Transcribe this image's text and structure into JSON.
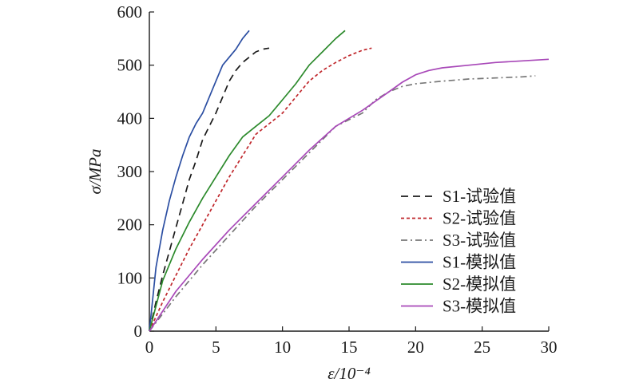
{
  "chart_data": {
    "type": "line",
    "xlabel": "ε/10⁻⁴",
    "ylabel": "σ/MPa",
    "xlim": [
      0,
      30
    ],
    "ylim": [
      0,
      600
    ],
    "xticks": [
      0,
      5,
      10,
      15,
      20,
      25,
      30
    ],
    "yticks": [
      0,
      100,
      200,
      300,
      400,
      500,
      600
    ],
    "grid": false,
    "legend_position": "bottom-right",
    "series": [
      {
        "name": "S1-试验值",
        "color": "#1a1a1a",
        "dash": "dashed",
        "x": [
          0,
          0.5,
          1.0,
          1.5,
          2.0,
          2.5,
          3.0,
          3.5,
          4.0,
          4.5,
          5.0,
          5.5,
          6.0,
          6.5,
          7.0,
          7.5,
          8.0,
          8.5,
          9.0
        ],
        "y": [
          0,
          55,
          105,
          150,
          195,
          240,
          285,
          320,
          360,
          385,
          410,
          440,
          470,
          490,
          505,
          515,
          525,
          530,
          532
        ]
      },
      {
        "name": "S2-试验值",
        "color": "#c0282d",
        "dash": "dotted",
        "x": [
          0,
          1,
          2,
          3,
          4,
          5,
          6,
          7,
          8,
          9,
          10,
          11,
          12,
          13,
          14,
          15,
          16,
          16.7
        ],
        "y": [
          0,
          55,
          105,
          155,
          200,
          245,
          290,
          330,
          370,
          390,
          410,
          440,
          470,
          490,
          505,
          518,
          528,
          532
        ]
      },
      {
        "name": "S3-试验值",
        "color": "#777777",
        "dash": "dashdot",
        "x": [
          0,
          2,
          4,
          6,
          8,
          10,
          12,
          14,
          16,
          17,
          18,
          19,
          20,
          22,
          24,
          26,
          28,
          29
        ],
        "y": [
          0,
          65,
          125,
          180,
          235,
          285,
          335,
          385,
          410,
          435,
          450,
          460,
          465,
          470,
          474,
          476,
          478,
          480
        ]
      },
      {
        "name": "S1-模拟值",
        "color": "#2b4ea2",
        "dash": "solid",
        "x": [
          0,
          0.5,
          1.0,
          1.5,
          2.0,
          2.5,
          3.0,
          3.5,
          4.0,
          4.5,
          5.0,
          5.5,
          6.0,
          6.5,
          7.0,
          7.5
        ],
        "y": [
          0,
          120,
          190,
          245,
          290,
          330,
          365,
          390,
          410,
          440,
          470,
          500,
          515,
          530,
          550,
          565
        ]
      },
      {
        "name": "S2-模拟值",
        "color": "#2c8a2c",
        "dash": "solid",
        "x": [
          0,
          1,
          2,
          3,
          4,
          5,
          6,
          7,
          8,
          9,
          10,
          11,
          12,
          13,
          14,
          14.7
        ],
        "y": [
          0,
          95,
          155,
          205,
          250,
          290,
          330,
          365,
          385,
          405,
          435,
          465,
          500,
          525,
          550,
          565
        ]
      },
      {
        "name": "S3-模拟值",
        "color": "#a848b8",
        "dash": "solid",
        "x": [
          0,
          2,
          4,
          6,
          8,
          10,
          12,
          14,
          16,
          18,
          19,
          20,
          21,
          22,
          24,
          26,
          28,
          30
        ],
        "y": [
          0,
          75,
          135,
          190,
          240,
          290,
          340,
          385,
          415,
          450,
          468,
          482,
          490,
          495,
          500,
          505,
          508,
          511
        ]
      }
    ]
  }
}
